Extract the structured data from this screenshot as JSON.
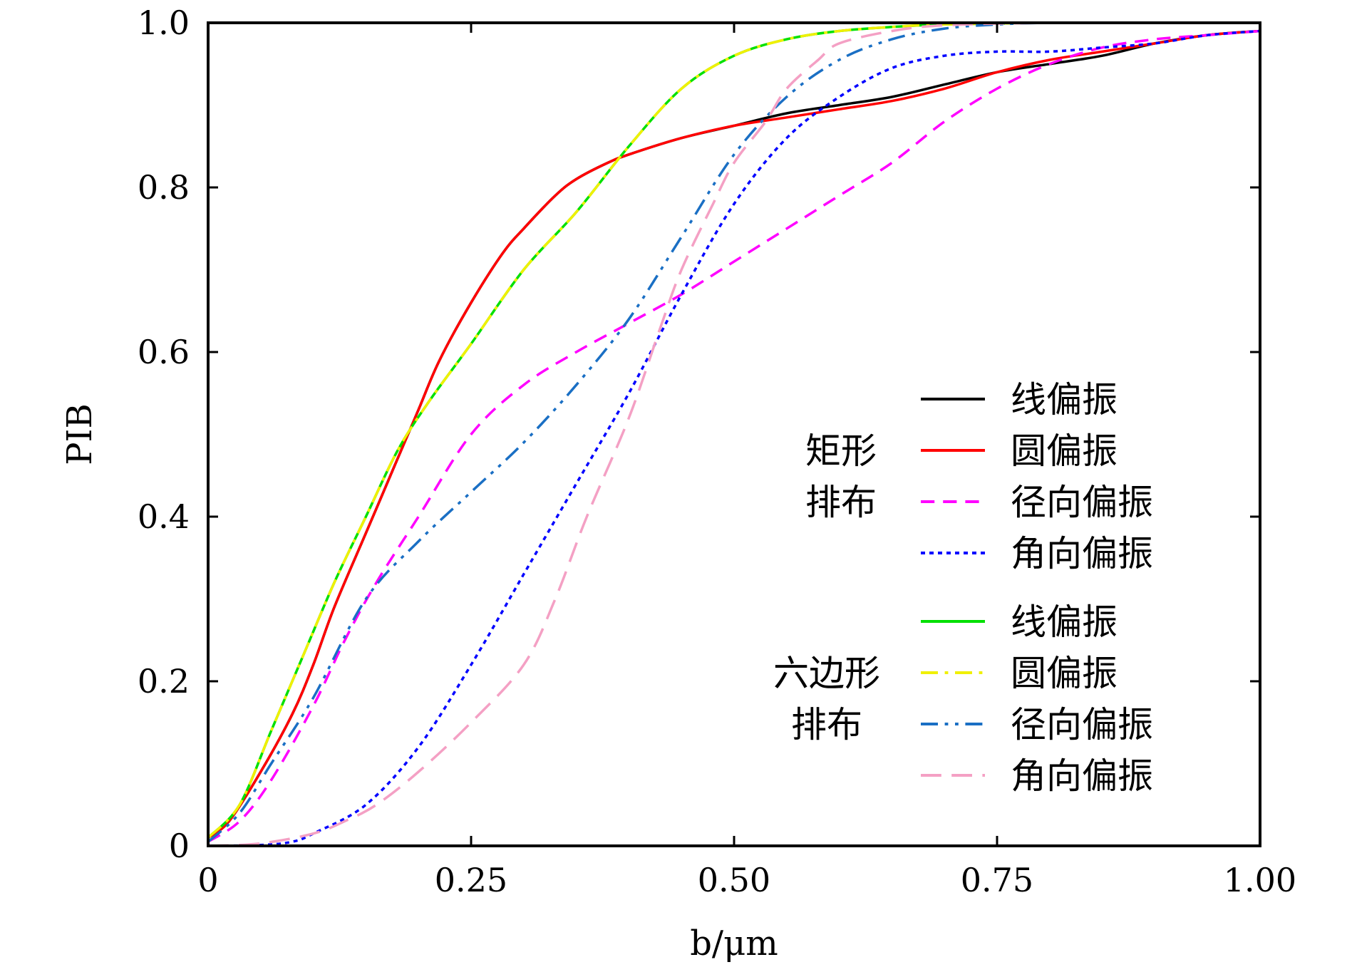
{
  "chart_data": {
    "type": "line",
    "xlabel": "b/μm",
    "ylabel": "PIB",
    "xlim": [
      0,
      1.0
    ],
    "ylim": [
      0,
      1.0
    ],
    "x_ticks": [
      "0",
      "0.25",
      "0.50",
      "0.75",
      "1.00"
    ],
    "y_ticks": [
      "0",
      "0.2",
      "0.4",
      "0.6",
      "0.8",
      "1.0"
    ],
    "legend_position": "lower-right",
    "legend_groups": [
      {
        "label_lines": [
          "矩形",
          "排布"
        ]
      },
      {
        "label_lines": [
          "六边形",
          "排布"
        ]
      }
    ],
    "series": [
      {
        "name": "线偏振",
        "group": 0,
        "color": "#000000",
        "dash": "solid",
        "x": [
          0,
          0.02,
          0.05,
          0.08,
          0.1,
          0.12,
          0.15,
          0.18,
          0.2,
          0.22,
          0.25,
          0.28,
          0.3,
          0.33,
          0.35,
          0.38,
          0.4,
          0.45,
          0.5,
          0.55,
          0.6,
          0.65,
          0.7,
          0.75,
          0.8,
          0.85,
          0.9,
          0.95,
          1.0
        ],
        "y": [
          0.01,
          0.03,
          0.09,
          0.16,
          0.22,
          0.29,
          0.38,
          0.47,
          0.53,
          0.59,
          0.66,
          0.72,
          0.75,
          0.79,
          0.81,
          0.83,
          0.84,
          0.86,
          0.875,
          0.89,
          0.9,
          0.91,
          0.925,
          0.94,
          0.95,
          0.96,
          0.975,
          0.985,
          0.99
        ]
      },
      {
        "name": "圆偏振",
        "group": 0,
        "color": "#ff0000",
        "dash": "solid",
        "x": [
          0,
          0.02,
          0.05,
          0.08,
          0.1,
          0.12,
          0.15,
          0.18,
          0.2,
          0.22,
          0.25,
          0.28,
          0.3,
          0.33,
          0.35,
          0.38,
          0.4,
          0.45,
          0.5,
          0.55,
          0.6,
          0.65,
          0.7,
          0.75,
          0.8,
          0.85,
          0.9,
          0.95,
          1.0
        ],
        "y": [
          0.01,
          0.03,
          0.09,
          0.16,
          0.22,
          0.29,
          0.38,
          0.47,
          0.53,
          0.59,
          0.66,
          0.72,
          0.75,
          0.79,
          0.81,
          0.83,
          0.84,
          0.86,
          0.875,
          0.885,
          0.895,
          0.905,
          0.92,
          0.94,
          0.955,
          0.965,
          0.975,
          0.985,
          0.99
        ]
      },
      {
        "name": "径向偏振",
        "group": 0,
        "color": "#ff00ff",
        "dash": "8,5",
        "x": [
          0,
          0.03,
          0.06,
          0.1,
          0.13,
          0.16,
          0.2,
          0.25,
          0.3,
          0.35,
          0.4,
          0.45,
          0.5,
          0.55,
          0.6,
          0.65,
          0.7,
          0.75,
          0.8,
          0.85,
          0.9,
          0.95,
          1.0
        ],
        "y": [
          0.005,
          0.03,
          0.08,
          0.17,
          0.25,
          0.32,
          0.4,
          0.5,
          0.56,
          0.6,
          0.635,
          0.67,
          0.71,
          0.75,
          0.79,
          0.83,
          0.88,
          0.92,
          0.95,
          0.97,
          0.98,
          0.985,
          0.99
        ]
      },
      {
        "name": "角向偏振",
        "group": 0,
        "color": "#0000ff",
        "dash": "2.5,2.5",
        "x": [
          0,
          0.05,
          0.08,
          0.1,
          0.15,
          0.2,
          0.25,
          0.3,
          0.35,
          0.4,
          0.45,
          0.5,
          0.55,
          0.6,
          0.65,
          0.7,
          0.75,
          0.8,
          0.85,
          0.9,
          0.95,
          1.0
        ],
        "y": [
          0,
          0.001,
          0.005,
          0.015,
          0.05,
          0.12,
          0.22,
          0.33,
          0.44,
          0.55,
          0.67,
          0.78,
          0.86,
          0.91,
          0.945,
          0.96,
          0.965,
          0.965,
          0.97,
          0.975,
          0.985,
          0.99
        ]
      },
      {
        "name": "线偏振",
        "group": 1,
        "color": "#00e000",
        "dash": "solid",
        "x": [
          0,
          0.03,
          0.06,
          0.09,
          0.12,
          0.15,
          0.18,
          0.21,
          0.25,
          0.3,
          0.35,
          0.4,
          0.45,
          0.5,
          0.55,
          0.6,
          0.65,
          0.7,
          0.8,
          0.9,
          1.0
        ],
        "y": [
          0.01,
          0.05,
          0.14,
          0.23,
          0.32,
          0.4,
          0.48,
          0.54,
          0.61,
          0.7,
          0.77,
          0.85,
          0.92,
          0.96,
          0.98,
          0.99,
          0.995,
          0.998,
          1.0,
          1.0,
          1.0
        ]
      },
      {
        "name": "圆偏振",
        "group": 1,
        "color": "#f0f000",
        "dash": "10,4,2,4",
        "x": [
          0,
          0.03,
          0.06,
          0.09,
          0.12,
          0.15,
          0.18,
          0.21,
          0.25,
          0.3,
          0.35,
          0.4,
          0.45,
          0.5,
          0.55,
          0.6,
          0.65,
          0.7,
          0.8,
          0.9,
          1.0
        ],
        "y": [
          0.01,
          0.05,
          0.14,
          0.23,
          0.32,
          0.4,
          0.48,
          0.54,
          0.61,
          0.7,
          0.77,
          0.85,
          0.92,
          0.96,
          0.98,
          0.99,
          0.995,
          0.998,
          1.0,
          1.0,
          1.0
        ]
      },
      {
        "name": "径向偏振",
        "group": 1,
        "color": "#1a6fc4",
        "dash": "10,4,2,4,2,4",
        "x": [
          0,
          0.03,
          0.06,
          0.1,
          0.15,
          0.2,
          0.25,
          0.3,
          0.35,
          0.4,
          0.45,
          0.5,
          0.55,
          0.6,
          0.65,
          0.7,
          0.75,
          0.8,
          0.9,
          1.0
        ],
        "y": [
          0.005,
          0.04,
          0.1,
          0.18,
          0.3,
          0.37,
          0.43,
          0.49,
          0.56,
          0.64,
          0.74,
          0.84,
          0.91,
          0.955,
          0.98,
          0.993,
          0.998,
          1.0,
          1.0,
          1.0
        ]
      },
      {
        "name": "角向偏振",
        "group": 1,
        "color": "#f4a0c4",
        "dash": "12,6",
        "x": [
          0,
          0.05,
          0.1,
          0.13,
          0.16,
          0.2,
          0.25,
          0.3,
          0.33,
          0.36,
          0.4,
          0.43,
          0.45,
          0.48,
          0.5,
          0.53,
          0.55,
          0.58,
          0.6,
          0.65,
          0.7,
          0.8,
          0.9,
          1.0
        ],
        "y": [
          0,
          0.003,
          0.015,
          0.03,
          0.05,
          0.09,
          0.15,
          0.22,
          0.3,
          0.4,
          0.52,
          0.63,
          0.7,
          0.78,
          0.83,
          0.88,
          0.92,
          0.955,
          0.975,
          0.99,
          0.997,
          1.0,
          1.0,
          1.0
        ]
      }
    ]
  }
}
